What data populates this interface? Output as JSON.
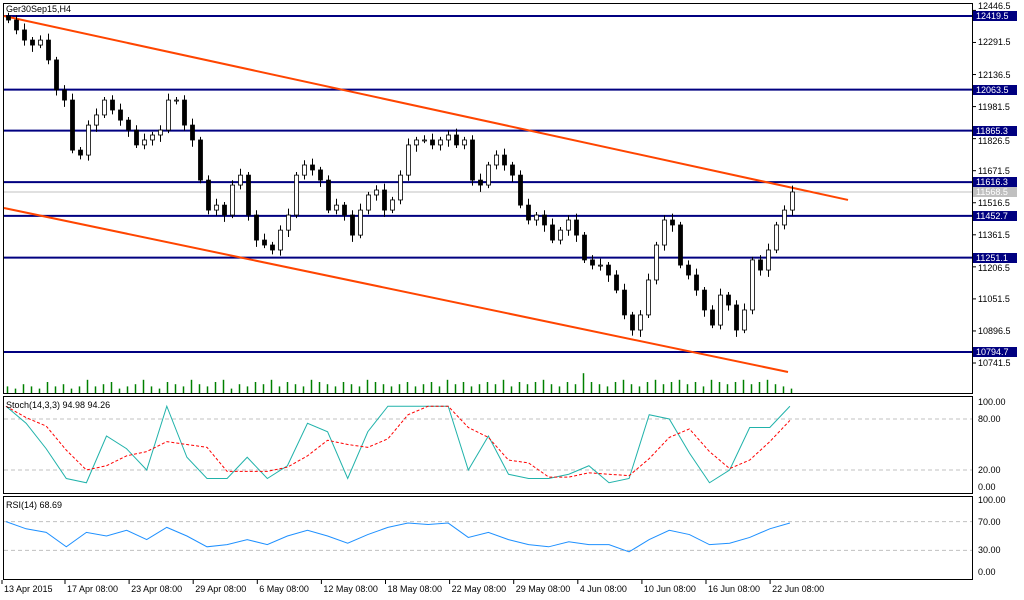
{
  "chart_data": {
    "type": "candlestick",
    "title": "Ger30Sep15,H4",
    "price_axis": {
      "range": [
        10680,
        12446.5
      ],
      "ticks": [
        12446.5,
        12291.5,
        12136.5,
        11981.5,
        11826.5,
        11671.5,
        11516.5,
        11361.5,
        11206.5,
        11051.5,
        10896.5,
        10741.5
      ]
    },
    "closes": [
      12400,
      12352,
      12303,
      12279,
      12303,
      12207,
      12062,
      12013,
      11771,
      11747,
      11892,
      11941,
      12013,
      11965,
      11916,
      11868,
      11796,
      11820,
      11844,
      11868,
      12013,
      12013,
      11892,
      11820,
      11626,
      11481,
      11505,
      11457,
      11602,
      11650,
      11457,
      11336,
      11312,
      11288,
      11384,
      11457,
      11650,
      11699,
      11675,
      11626,
      11481,
      11505,
      11457,
      11360,
      11481,
      11554,
      11578,
      11481,
      11530,
      11650,
      11796,
      11820,
      11820,
      11796,
      11820,
      11844,
      11796,
      11820,
      11626,
      11602,
      11699,
      11747,
      11699,
      11650,
      11505,
      11433,
      11457,
      11409,
      11336,
      11384,
      11433,
      11360,
      11240,
      11215,
      11215,
      11167,
      11094,
      10974,
      10901,
      10974,
      11143,
      11312,
      11433,
      11409,
      11215,
      11167,
      11094,
      10998,
      10925,
      11070,
      11022,
      10901,
      10998,
      11240,
      11191,
      11288,
      11409,
      11481,
      11568.5
    ],
    "volumes": [
      3,
      2,
      4,
      3,
      2,
      5,
      3,
      4,
      2,
      3,
      6,
      3,
      4,
      5,
      2,
      3,
      4,
      6,
      3,
      2,
      5,
      4,
      3,
      6,
      4,
      3,
      5,
      6,
      2,
      4,
      3,
      5,
      4,
      6,
      3,
      5,
      4,
      3,
      6,
      5,
      4,
      3,
      5,
      4,
      3,
      6,
      5,
      4,
      3,
      4,
      5,
      3,
      4,
      5,
      3,
      6,
      4,
      5,
      3,
      4,
      5,
      4,
      6,
      3,
      5,
      4,
      5,
      6,
      4,
      3,
      5,
      4,
      9,
      5,
      4,
      3,
      5,
      6,
      4,
      3,
      5,
      6,
      4,
      5,
      6,
      4,
      5,
      3,
      6,
      5,
      4,
      5,
      6,
      4,
      5,
      6,
      4,
      3,
      2
    ],
    "levels": [
      {
        "price": 12419.5,
        "label": "12419.5"
      },
      {
        "price": 12063.5,
        "label": "12063.5"
      },
      {
        "price": 11865.3,
        "label": "11865.3"
      },
      {
        "price": 11616.3,
        "label": "11616.3"
      },
      {
        "price": 11452.7,
        "label": "11452.7"
      },
      {
        "price": 11251.1,
        "label": "11251.1"
      },
      {
        "price": 10794.7,
        "label": "10794.7"
      }
    ],
    "current_price": {
      "price": 11568.5,
      "label": "11568.5"
    },
    "trend_lines": [
      {
        "from": [
          0,
          12419.5
        ],
        "to": [
          105,
          11530
        ]
      },
      {
        "from": [
          0,
          11491
        ],
        "to": [
          97.5,
          10698
        ]
      }
    ],
    "x_labels": [
      "13 Apr 2015",
      "17 Apr 08:00",
      "23 Apr 08:00",
      "29 Apr 08:00",
      "6 May 08:00",
      "12 May 08:00",
      "18 May 08:00",
      "22 May 08:00",
      "29 May 08:00",
      "4 Jun 08:00",
      "10 Jun 08:00",
      "16 Jun 08:00",
      "22 Jun 08:00"
    ],
    "stoch": {
      "title": "Stoch(14,3,3) 94.98 94.26",
      "ticks": [
        "100.00",
        "80.00",
        "20.00",
        "0.00"
      ],
      "levels": [
        80,
        20
      ],
      "main": [
        95,
        75,
        45,
        10,
        5,
        60,
        45,
        20,
        95,
        35,
        10,
        10,
        35,
        10,
        25,
        75,
        65,
        10,
        65,
        95,
        95,
        95,
        95,
        20,
        60,
        15,
        10,
        10,
        15,
        25,
        5,
        10,
        85,
        80,
        40,
        5,
        20,
        70,
        70,
        95
      ]
    },
    "rsi": {
      "title": "RSI(14) 68.69",
      "ticks": [
        "100.00",
        "70.00",
        "30.00",
        "0.00"
      ],
      "levels": [
        70,
        30
      ],
      "values": [
        70,
        60,
        55,
        35,
        55,
        50,
        58,
        45,
        62,
        50,
        35,
        38,
        45,
        38,
        50,
        58,
        50,
        40,
        52,
        62,
        68,
        66,
        68,
        48,
        55,
        45,
        38,
        35,
        42,
        38,
        38,
        28,
        45,
        58,
        52,
        38,
        40,
        48,
        60,
        68
      ]
    },
    "colors": {
      "level": "#000080",
      "trend": "#ff4500",
      "volume": "#008000",
      "stoch_main": "#20b2aa",
      "stoch_signal": "#ff0000",
      "rsi": "#1e90ff",
      "candle_up": "#ffffff",
      "candle_down": "#000000"
    }
  }
}
